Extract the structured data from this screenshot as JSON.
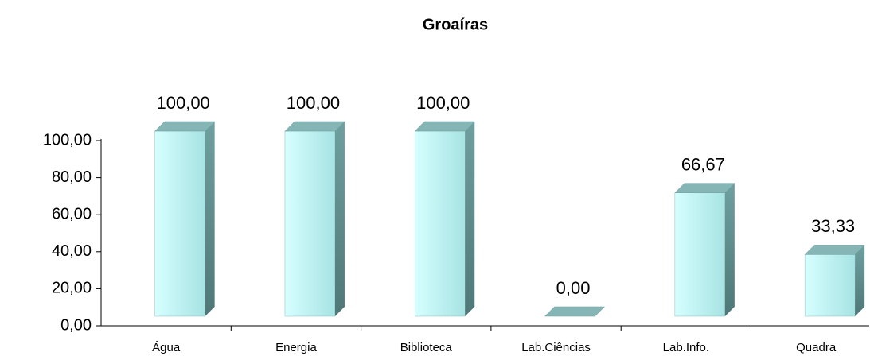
{
  "chart_data": {
    "type": "bar3d",
    "title": "Groaíras",
    "categories": [
      "Água",
      "Energia",
      "Biblioteca",
      "Lab.Ciências",
      "Lab.Info.",
      "Quadra"
    ],
    "values": [
      100,
      100,
      100,
      0,
      66.67,
      33.33
    ],
    "value_labels": [
      "100,00",
      "100,00",
      "100,00",
      "0,00",
      "66,67",
      "33,33"
    ],
    "color": "#bff5f5",
    "ylim": [
      0,
      100
    ],
    "yticks": [
      {
        "value": 0,
        "label": "0,00"
      },
      {
        "value": 20,
        "label": "20,00"
      },
      {
        "value": 40,
        "label": "40,00"
      },
      {
        "value": 60,
        "label": "60,00"
      },
      {
        "value": 80,
        "label": "80,00"
      },
      {
        "value": 100,
        "label": "100,00"
      }
    ],
    "grid": false
  }
}
